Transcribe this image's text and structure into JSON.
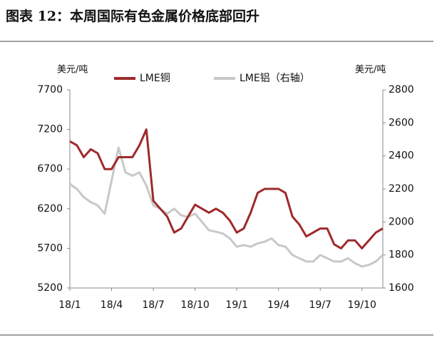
{
  "chart_data": {
    "type": "line",
    "title": "图表 12：本周国际有色金属价格底部回升",
    "y_label": "美元/吨",
    "y2_label": "美元/吨",
    "categories": [
      "18/1",
      null,
      null,
      null,
      null,
      null,
      "18/4",
      null,
      null,
      null,
      null,
      null,
      "18/7",
      null,
      null,
      null,
      null,
      null,
      "18/10",
      null,
      null,
      null,
      null,
      null,
      "19/1",
      null,
      null,
      null,
      null,
      null,
      "19/4",
      null,
      null,
      null,
      null,
      null,
      "19/7",
      null,
      null,
      null,
      null,
      null,
      "19/10",
      null,
      null,
      null
    ],
    "series": [
      {
        "name": "LME铜",
        "color": "#9e2a2b",
        "values": [
          7050,
          7000,
          6850,
          6950,
          6900,
          6700,
          6700,
          6850,
          6850,
          6850,
          7000,
          7200,
          6300,
          6200,
          6100,
          5900,
          5950,
          6100,
          6250,
          6200,
          6150,
          6200,
          6150,
          6050,
          5900,
          5950,
          6150,
          6400,
          6450,
          6450,
          6450,
          6400,
          6100,
          6000,
          5850,
          5900,
          5950,
          5950,
          5750,
          5700,
          5800,
          5800,
          5700,
          5800,
          5900,
          5950
        ]
      },
      {
        "name": "LME铝（右轴）",
        "color": "#c8c8c8",
        "axis": "y2",
        "values": [
          2230,
          2200,
          2150,
          2120,
          2100,
          2050,
          2250,
          2450,
          2300,
          2280,
          2300,
          2220,
          2100,
          2080,
          2050,
          2080,
          2040,
          2030,
          2050,
          2000,
          1950,
          1940,
          1930,
          1900,
          1850,
          1860,
          1850,
          1870,
          1880,
          1900,
          1860,
          1850,
          1800,
          1780,
          1760,
          1760,
          1800,
          1780,
          1760,
          1760,
          1780,
          1750,
          1730,
          1740,
          1760,
          1800
        ]
      }
    ],
    "ylim": [
      5200,
      7700
    ],
    "yticks": [
      5200,
      5700,
      6200,
      6700,
      7200,
      7700
    ],
    "y2lim": [
      1600,
      2800
    ],
    "y2ticks": [
      1600,
      1800,
      2000,
      2200,
      2400,
      2600,
      2800
    ]
  }
}
